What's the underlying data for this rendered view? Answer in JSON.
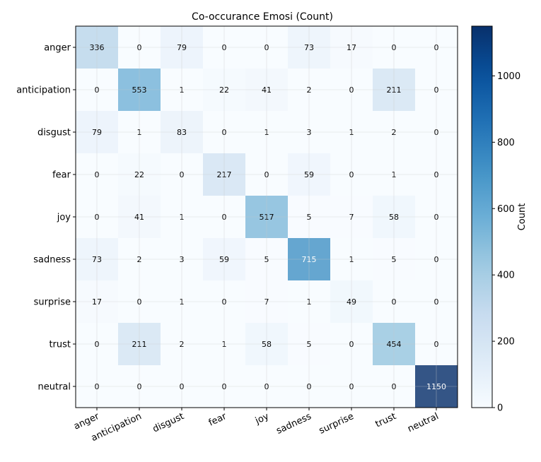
{
  "chart_data": {
    "type": "heatmap",
    "title": "Co-occurance Emosi (Count)",
    "rows": [
      "anger",
      "anticipation",
      "disgust",
      "fear",
      "joy",
      "sadness",
      "surprise",
      "trust",
      "neutral"
    ],
    "cols": [
      "anger",
      "anticipation",
      "disgust",
      "fear",
      "joy",
      "sadness",
      "surprise",
      "trust",
      "neutral"
    ],
    "values": [
      [
        336,
        0,
        79,
        0,
        0,
        73,
        17,
        0,
        0
      ],
      [
        0,
        553,
        1,
        22,
        41,
        2,
        0,
        211,
        0
      ],
      [
        79,
        1,
        83,
        0,
        1,
        3,
        1,
        2,
        0
      ],
      [
        0,
        22,
        0,
        217,
        0,
        59,
        0,
        1,
        0
      ],
      [
        0,
        41,
        1,
        0,
        517,
        5,
        7,
        58,
        0
      ],
      [
        73,
        2,
        3,
        59,
        5,
        715,
        1,
        5,
        0
      ],
      [
        17,
        0,
        1,
        0,
        7,
        1,
        49,
        0,
        0
      ],
      [
        0,
        211,
        2,
        1,
        58,
        5,
        0,
        454,
        0
      ],
      [
        0,
        0,
        0,
        0,
        0,
        0,
        0,
        0,
        1150
      ]
    ],
    "colorbar": {
      "label": "Count",
      "range": [
        0,
        1150
      ],
      "ticks": [
        0,
        200,
        400,
        600,
        800,
        1000
      ],
      "colormap": "Blues"
    },
    "grid": true
  }
}
